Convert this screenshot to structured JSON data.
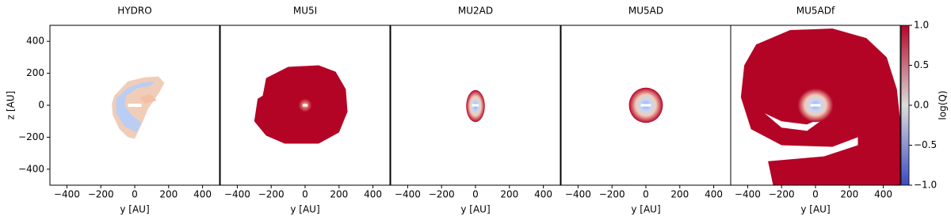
{
  "chart_data": [
    {
      "type": "image",
      "title": "HYDRO",
      "xlabel": "y [AU]",
      "ylabel": "z [AU]",
      "xlim": [
        -500,
        500
      ],
      "xticks": [
        {
          "value": -400,
          "label": "−400"
        },
        {
          "value": -200,
          "label": "−200"
        },
        0,
        200,
        400
      ],
      "ylim": [
        -500,
        500
      ],
      "yticks": [
        {
          "value": -400,
          "label": "−400"
        },
        {
          "value": -200,
          "label": "−200"
        },
        0,
        200,
        400
      ]
    },
    {
      "type": "image",
      "title": "MU5I",
      "xlabel": "y [AU]",
      "xlim": [
        -500,
        500
      ],
      "xticks": [
        {
          "value": -400,
          "label": "−400"
        },
        {
          "value": -200,
          "label": "−200"
        },
        0,
        200,
        400
      ],
      "ylim": [
        -500,
        500
      ]
    },
    {
      "type": "image",
      "title": "MU2AD",
      "xlabel": "y [AU]",
      "xlim": [
        -500,
        500
      ],
      "xticks": [
        {
          "value": -400,
          "label": "−400"
        },
        {
          "value": -200,
          "label": "−200"
        },
        0,
        200,
        400
      ],
      "ylim": [
        -500,
        500
      ]
    },
    {
      "type": "image",
      "title": "MU5AD",
      "xlabel": "y [AU]",
      "xlim": [
        -500,
        500
      ],
      "xticks": [
        {
          "value": -400,
          "label": "−400"
        },
        {
          "value": -200,
          "label": "−200"
        },
        0,
        200,
        400
      ],
      "ylim": [
        -500,
        500
      ]
    },
    {
      "type": "image",
      "title": "MU5ADf",
      "xlabel": "y [AU]",
      "xlim": [
        -500,
        500
      ],
      "xticks": [
        {
          "value": -400,
          "label": "−400"
        },
        {
          "value": -200,
          "label": "−200"
        },
        0,
        200,
        400
      ],
      "ylim": [
        -500,
        500
      ],
      "colorbar": {
        "label": "log(Q)",
        "lim": [
          -1,
          1
        ],
        "colors": [
          "#3b4cc0",
          "#dddddd",
          "#b40426"
        ],
        "ticks": [
          {
            "value": 1,
            "label": "1.0"
          },
          {
            "value": 0.5,
            "label": "0.5"
          },
          {
            "value": 0,
            "label": "0.0"
          },
          {
            "value": -0.5,
            "label": "−0.5"
          },
          {
            "value": -1,
            "label": "−1.0"
          }
        ]
      }
    }
  ]
}
